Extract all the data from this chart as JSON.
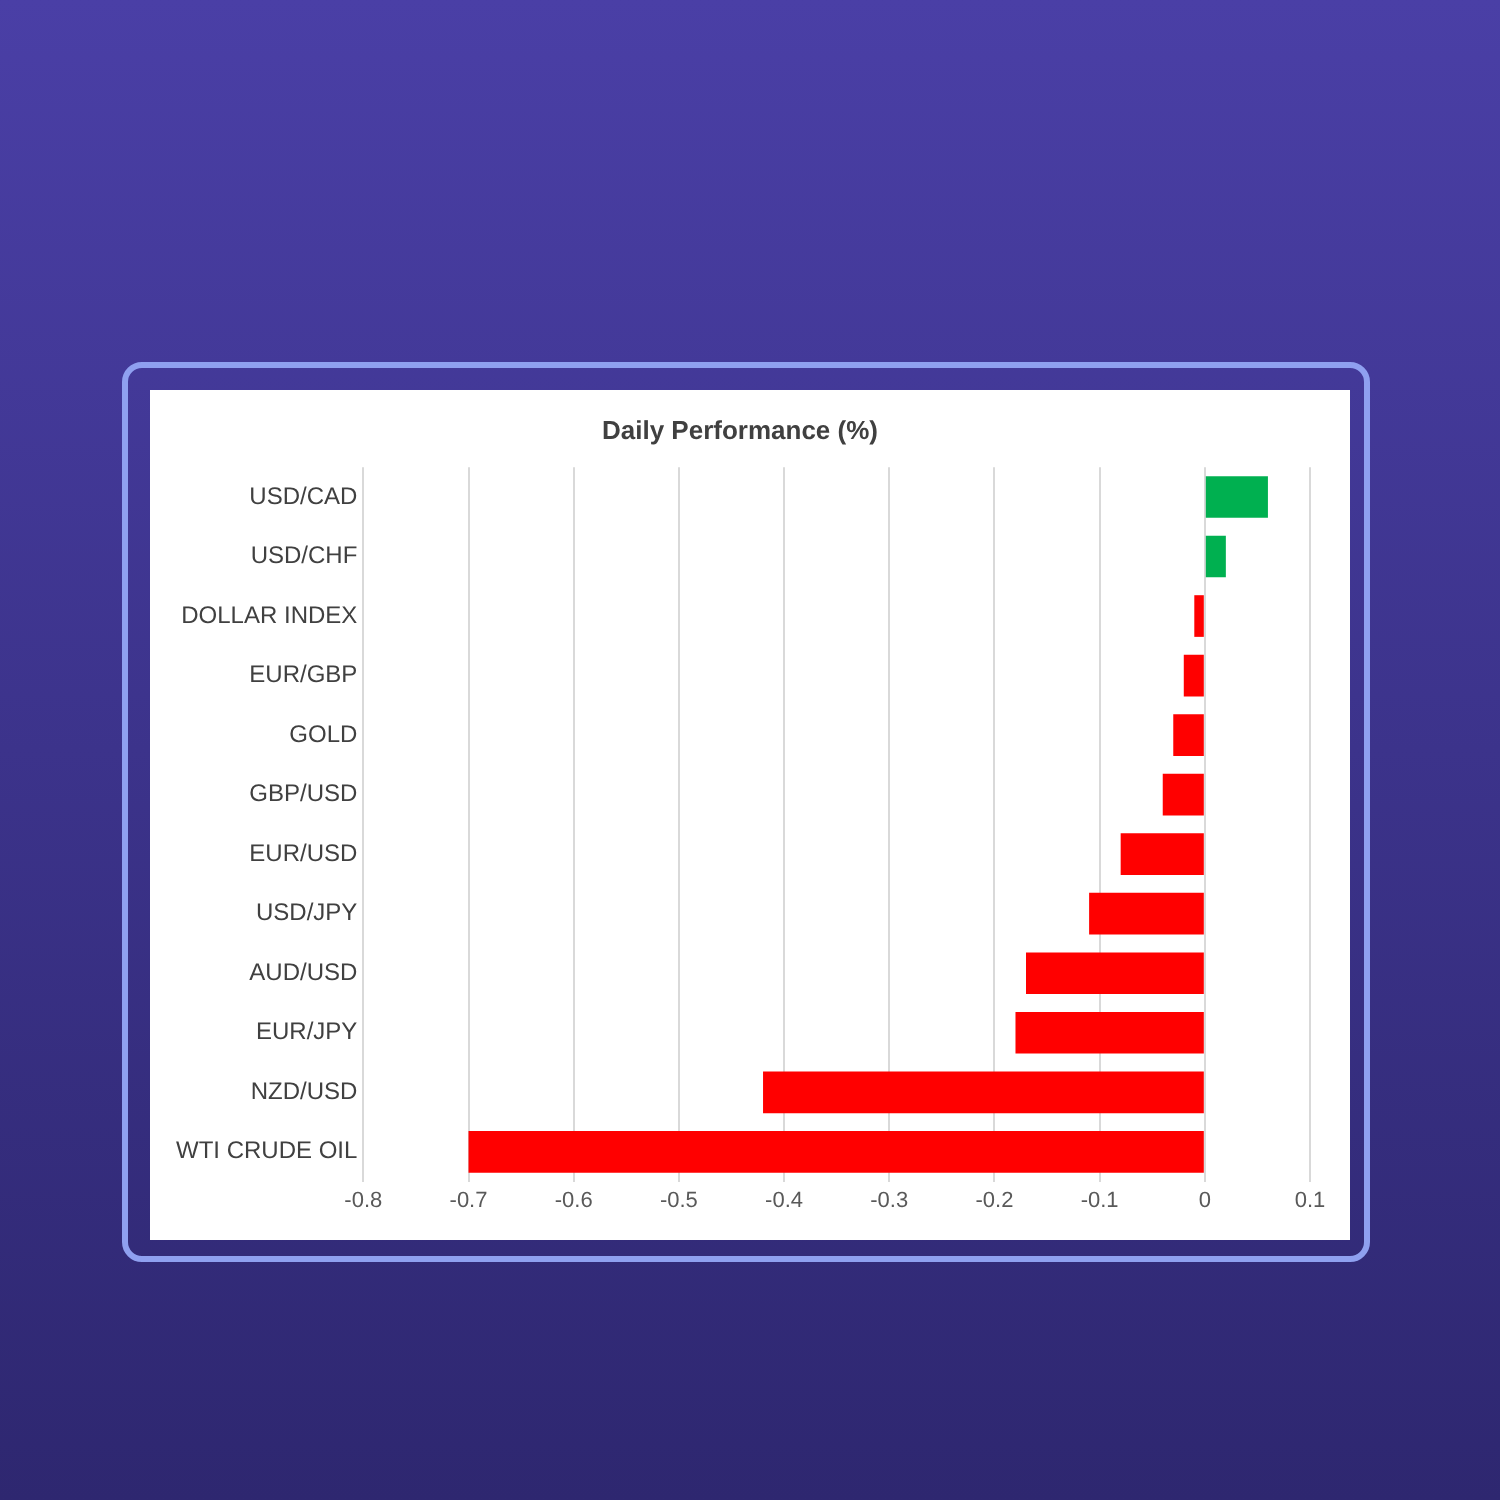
{
  "chart_data": {
    "type": "bar",
    "orientation": "horizontal",
    "title": "Daily Performance (%)",
    "categories": [
      "USD/CAD",
      "USD/CHF",
      "DOLLAR INDEX",
      "EUR/GBP",
      "GOLD",
      "GBP/USD",
      "EUR/USD",
      "USD/JPY",
      "AUD/USD",
      "EUR/JPY",
      "NZD/USD",
      "WTI CRUDE OIL"
    ],
    "values": [
      0.06,
      0.02,
      -0.01,
      -0.02,
      -0.03,
      -0.04,
      -0.08,
      -0.11,
      -0.17,
      -0.18,
      -0.42,
      -0.7
    ],
    "colors": [
      "#00b050",
      "#00b050",
      "#ff0000",
      "#ff0000",
      "#ff0000",
      "#ff0000",
      "#ff0000",
      "#ff0000",
      "#ff0000",
      "#ff0000",
      "#ff0000",
      "#ff0000"
    ],
    "xlim": [
      -0.8,
      0.1
    ],
    "xticks": [
      -0.8,
      -0.7,
      -0.6,
      -0.5,
      -0.4,
      -0.3,
      -0.2,
      -0.1,
      0,
      0.1
    ],
    "grid": "x"
  }
}
